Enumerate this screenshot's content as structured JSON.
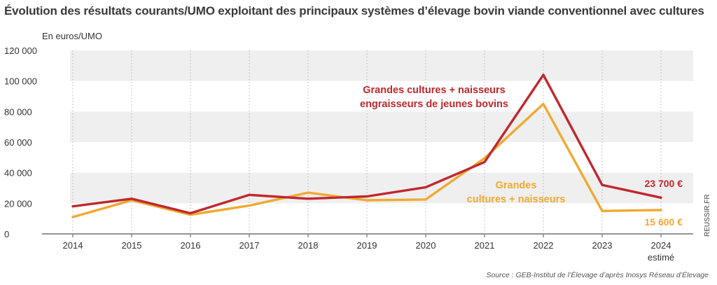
{
  "chart_data": {
    "type": "line",
    "title": "Évolution des résultats courants/UMO exploitant des principaux systèmes d’élevage bovin viande conventionnel avec cultures",
    "ylabel": "En euros/UMO",
    "xlabel": "",
    "categories": [
      "2014",
      "2015",
      "2016",
      "2017",
      "2018",
      "2019",
      "2020",
      "2021",
      "2022",
      "2023",
      "2024"
    ],
    "category_sublabels": {
      "2024": "estimé"
    },
    "ylim": [
      0,
      120000
    ],
    "yticks": [
      0,
      20000,
      40000,
      60000,
      80000,
      100000,
      120000
    ],
    "ytick_labels": [
      "0",
      "20 000",
      "40 000",
      "60 000",
      "80 000",
      "100 000",
      "120 000"
    ],
    "grid": "alternating horizontal bands",
    "series": [
      {
        "name": "Grandes cultures + naisseurs engraisseurs de jeunes bovins",
        "label_lines": [
          "Grandes cultures + naisseurs",
          "engraisseurs de jeunes bovins"
        ],
        "color": "#c0282d",
        "values": [
          18000,
          23000,
          13500,
          25500,
          23000,
          24500,
          30500,
          47000,
          104000,
          32000,
          23700
        ],
        "end_label": "23 700 €"
      },
      {
        "name": "Grandes cultures + naisseurs",
        "label_lines": [
          "Grandes",
          "cultures + naisseurs"
        ],
        "color": "#f0a932",
        "values": [
          11000,
          22000,
          12500,
          18500,
          27000,
          22000,
          22500,
          49500,
          85000,
          15000,
          15600
        ],
        "end_label": "15 600 €"
      }
    ],
    "source": "Source : GEB-Institut de l’Élevage d’après Inosys Réseau d’Élevage",
    "credit": "REUSSIR.FR"
  }
}
